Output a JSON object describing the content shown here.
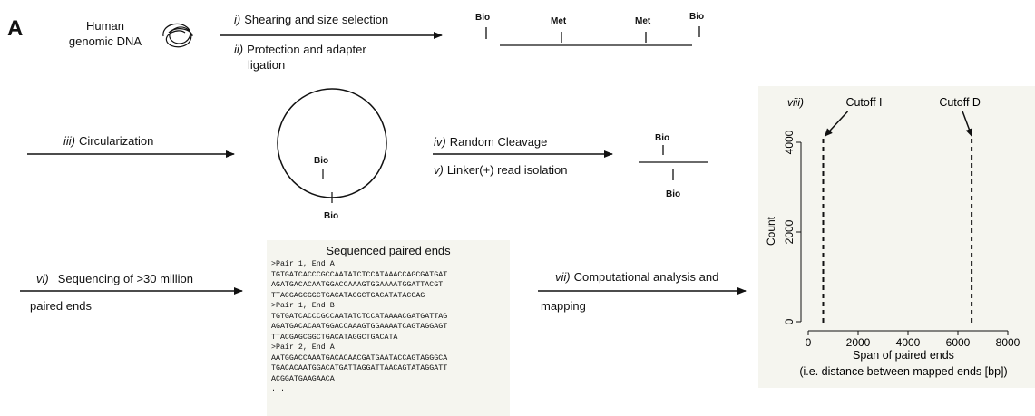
{
  "panel_label": "A",
  "dna": {
    "line1": "Human",
    "line2": "genomic DNA"
  },
  "steps": {
    "i": {
      "num": "i)",
      "text": "Shearing and size selection"
    },
    "ii": {
      "num": "ii)",
      "line1": "Protection and adapter",
      "line2": "ligation"
    },
    "iii": {
      "num": "iii)",
      "text": "Circularization"
    },
    "iv": {
      "num": "iv)",
      "text": "Random Cleavage"
    },
    "v": {
      "num": "v)",
      "text": "Linker(+) read isolation"
    },
    "vi": {
      "num": "vi)",
      "line1": "Sequencing of >30 million",
      "line2": "paired ends"
    },
    "vii": {
      "num": "vii)",
      "line1": "Computational analysis and",
      "line2": "mapping"
    }
  },
  "fragment_labels": {
    "bio": "Bio",
    "met": "Met"
  },
  "sequence_box": {
    "title": "Sequenced paired ends",
    "lines": [
      ">Pair 1, End A",
      "TGTGATCACCCGCCAATATCTCCATAAACCAGCGATGAT",
      "AGATGACACAATGGACCAAAGTGGAAAATGGATTACGT",
      "TTACGAGCGGCTGACATAGGCTGACATATACCAG",
      ">Pair 1, End B",
      "TGTGATCACCCGCCAATATCTCCATAAAACGATGATTAG",
      "AGATGACACAATGGACCAAAGTGGAAAATCAGTAGGAGT",
      "TTACGAGCGGCTGACATAGGCTGACATA",
      ">Pair 2, End A",
      "AATGGACCAAATGACACAACGATGAATACCAGTAGGGCA",
      "TGACACAATGGACATGATTAGGATTAACAGTATAGGATT",
      "ACGGATGAAGAACA",
      "..."
    ]
  },
  "chart_data": {
    "type": "histogram",
    "panel": "viii)",
    "xlabel": "Span of paired ends",
    "xlabel2": "(i.e. distance between mapped ends [bp])",
    "ylabel": "Count",
    "xlim": [
      0,
      8000
    ],
    "ylim": [
      0,
      4000
    ],
    "xticks": [
      "0",
      "2000",
      "4000",
      "6000",
      "8000"
    ],
    "yticks": [
      "0",
      "2000",
      "4000"
    ],
    "cutoffs": [
      {
        "name": "Cutoff I",
        "x": 600
      },
      {
        "name": "Cutoff D",
        "x": 6550
      }
    ]
  }
}
